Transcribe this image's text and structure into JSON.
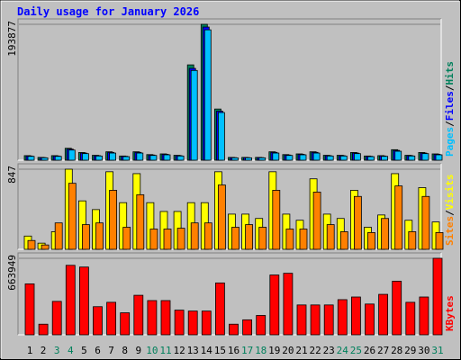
{
  "chart_data": [
    {
      "type": "bar",
      "title": "Daily usage for January 2026",
      "legend_separator": "/",
      "ylim": [
        0,
        193877
      ],
      "yticks": [
        193877
      ],
      "series": [
        {
          "name": "Hits",
          "color": "#00805c",
          "values": [
            6500,
            4000,
            6500,
            17000,
            11000,
            7000,
            12000,
            6000,
            12000,
            8000,
            9000,
            7000,
            136000,
            193877,
            73000,
            4000,
            4000,
            4000,
            12000,
            8000,
            9000,
            12000,
            7000,
            7000,
            11000,
            6000,
            6500,
            15000,
            7000,
            11000,
            9000
          ]
        },
        {
          "name": "Files",
          "color": "#0000ff",
          "values": [
            6000,
            3700,
            6000,
            15800,
            10200,
            6500,
            11200,
            5600,
            11200,
            7400,
            8400,
            6500,
            131000,
            190000,
            70000,
            3700,
            3700,
            3700,
            11200,
            7400,
            8400,
            11200,
            6500,
            6500,
            10200,
            5600,
            6000,
            14000,
            6500,
            10200,
            8400
          ]
        },
        {
          "name": "Pages",
          "color": "#00c0ff",
          "values": [
            5500,
            3400,
            5500,
            14500,
            9400,
            6000,
            10200,
            5100,
            10200,
            6800,
            7700,
            6000,
            128000,
            186000,
            68000,
            3400,
            3400,
            3400,
            10200,
            6800,
            7700,
            10200,
            6000,
            6000,
            9400,
            5100,
            5500,
            12800,
            6000,
            9400,
            7700
          ]
        }
      ]
    },
    {
      "type": "bar",
      "ylim": [
        0,
        847
      ],
      "yticks": [
        847
      ],
      "legend_separator": "/",
      "series": [
        {
          "name": "Visits",
          "color": "#ffff00",
          "values": [
            140,
            65,
            186,
            847,
            512,
            420,
            820,
            493,
            800,
            493,
            400,
            400,
            493,
            493,
            820,
            372,
            372,
            326,
            820,
            372,
            307,
            745,
            372,
            326,
            624,
            233,
            363,
            800,
            307,
            652,
            289
          ]
        },
        {
          "name": "Sites",
          "color": "#ff8000",
          "values": [
            93,
            46,
            279,
            698,
            261,
            279,
            624,
            233,
            577,
            214,
            214,
            223,
            279,
            279,
            680,
            233,
            261,
            233,
            624,
            214,
            214,
            605,
            261,
            186,
            559,
            177,
            326,
            670,
            186,
            559,
            177
          ]
        }
      ]
    },
    {
      "type": "bar",
      "ylim": [
        0,
        663949
      ],
      "yticks": [
        663949
      ],
      "categories": [
        "1",
        "2",
        "3",
        "4",
        "5",
        "6",
        "7",
        "8",
        "9",
        "10",
        "11",
        "12",
        "13",
        "14",
        "15",
        "16",
        "17",
        "18",
        "19",
        "20",
        "21",
        "22",
        "23",
        "24",
        "25",
        "26",
        "27",
        "28",
        "29",
        "30",
        "31"
      ],
      "category_colors": [
        "#000000",
        "#000000",
        "#00805c",
        "#00805c",
        "#000000",
        "#000000",
        "#000000",
        "#000000",
        "#000000",
        "#00805c",
        "#00805c",
        "#000000",
        "#000000",
        "#000000",
        "#000000",
        "#000000",
        "#00805c",
        "#00805c",
        "#000000",
        "#000000",
        "#000000",
        "#000000",
        "#000000",
        "#00805c",
        "#00805c",
        "#000000",
        "#000000",
        "#000000",
        "#000000",
        "#000000",
        "#00805c"
      ],
      "series": [
        {
          "name": "KBytes",
          "color": "#ff0000",
          "values": [
            442000,
            92000,
            290000,
            603000,
            588000,
            244000,
            282000,
            191000,
            343000,
            297000,
            297000,
            214000,
            206000,
            206000,
            450000,
            92000,
            130000,
            168000,
            519000,
            534000,
            259000,
            259000,
            259000,
            305000,
            328000,
            267000,
            351000,
            465000,
            282000,
            328000,
            663949
          ]
        }
      ]
    }
  ]
}
